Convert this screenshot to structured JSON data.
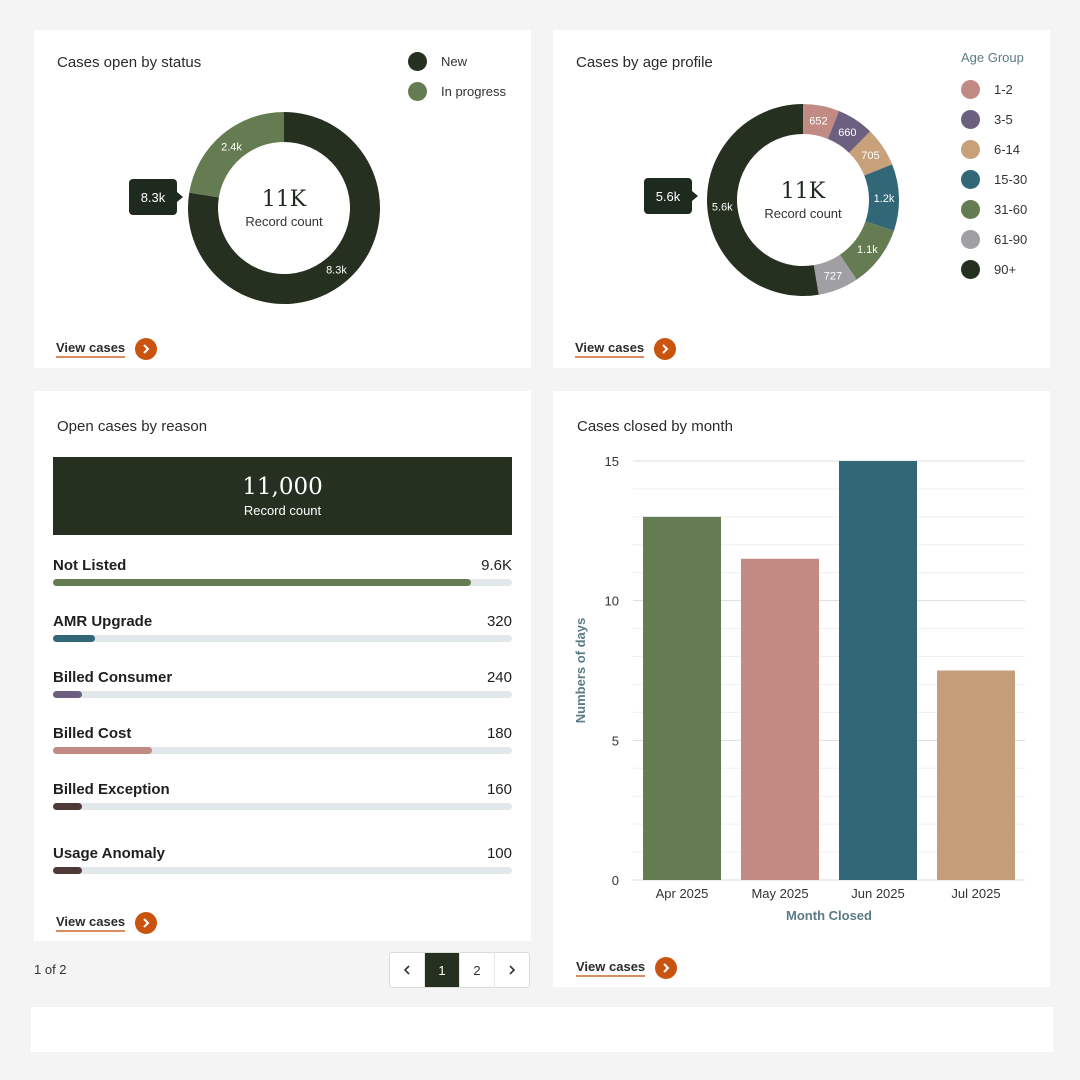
{
  "status_card": {
    "title": "Cases open by status",
    "legend": [
      {
        "label": "New",
        "color": "#263020"
      },
      {
        "label": "In progress",
        "color": "#657c52"
      }
    ],
    "center_value": "11K",
    "center_label": "Record count",
    "tooltip": "8.3k",
    "view_label": "View cases"
  },
  "age_card": {
    "title": "Cases by age profile",
    "legend_title": "Age Group",
    "legend": [
      {
        "label": "1-2",
        "color": "#c18b83"
      },
      {
        "label": "3-5",
        "color": "#6c5f80"
      },
      {
        "label": "6-14",
        "color": "#c8a07a"
      },
      {
        "label": "15-30",
        "color": "#326777"
      },
      {
        "label": "31-60",
        "color": "#657c52"
      },
      {
        "label": "61-90",
        "color": "#a0a0a4"
      },
      {
        "label": "90+",
        "color": "#263020"
      }
    ],
    "center_value": "11K",
    "center_label": "Record count",
    "tooltip": "5.6k",
    "view_label": "View cases"
  },
  "reason_card": {
    "title": "Open cases by reason",
    "total_value": "11,000",
    "total_label": "Record count",
    "rows": [
      {
        "name": "Not Listed",
        "value": "9.6K",
        "fraction": 0.91,
        "color": "#657c52"
      },
      {
        "name": "AMR Upgrade",
        "value": "320",
        "fraction": 0.092,
        "color": "#326777"
      },
      {
        "name": "Billed Consumer",
        "value": "240",
        "fraction": 0.063,
        "color": "#6c5f80"
      },
      {
        "name": "Billed Cost",
        "value": "180",
        "fraction": 0.216,
        "color": "#c18b83"
      },
      {
        "name": "Billed Exception",
        "value": "160",
        "fraction": 0.063,
        "color": "#4d3a37"
      },
      {
        "name": "Usage Anomaly",
        "value": "100",
        "fraction": 0.063,
        "color": "#4d3a37"
      }
    ],
    "view_label": "View cases"
  },
  "pagination": {
    "summary": "1 of 2",
    "pages": [
      "1",
      "2"
    ],
    "active_page": "1"
  },
  "closed_card": {
    "title": "Cases closed by month",
    "view_label": "View cases"
  },
  "chart_data": [
    {
      "type": "pie",
      "title": "Cases open by status",
      "donut": true,
      "categories": [
        "New",
        "In progress"
      ],
      "values": [
        8.3,
        2.4
      ],
      "value_labels": [
        "8.3k",
        "2.4k"
      ],
      "colors": [
        "#263020",
        "#657c52"
      ],
      "legend": "top-right"
    },
    {
      "type": "pie",
      "title": "Cases by age profile",
      "donut": true,
      "legend_title": "Age Group",
      "categories": [
        "1-2",
        "3-5",
        "6-14",
        "15-30",
        "31-60",
        "61-90",
        "90+"
      ],
      "values": [
        652,
        660,
        705,
        1200,
        1100,
        727,
        5600
      ],
      "value_labels": [
        "652",
        "660",
        "705",
        "1.2k",
        "1.1k",
        "727",
        "5.6k"
      ],
      "colors": [
        "#c18b83",
        "#6c5f80",
        "#c8a07a",
        "#326777",
        "#657c52",
        "#a0a0a4",
        "#263020"
      ],
      "legend": "right"
    },
    {
      "type": "bar",
      "title": "Cases closed by month",
      "categories": [
        "Apr 2025",
        "May 2025",
        "Jun 2025",
        "Jul 2025"
      ],
      "values": [
        13,
        11.5,
        15,
        7.5
      ],
      "colors": [
        "#657c52",
        "#c18b83",
        "#326777",
        "#c49e78"
      ],
      "xlabel": "Month Closed",
      "ylabel": "Numbers of days",
      "ylim": [
        0,
        15
      ],
      "yticks": [
        0,
        5,
        10,
        15
      ],
      "grid": true
    }
  ]
}
